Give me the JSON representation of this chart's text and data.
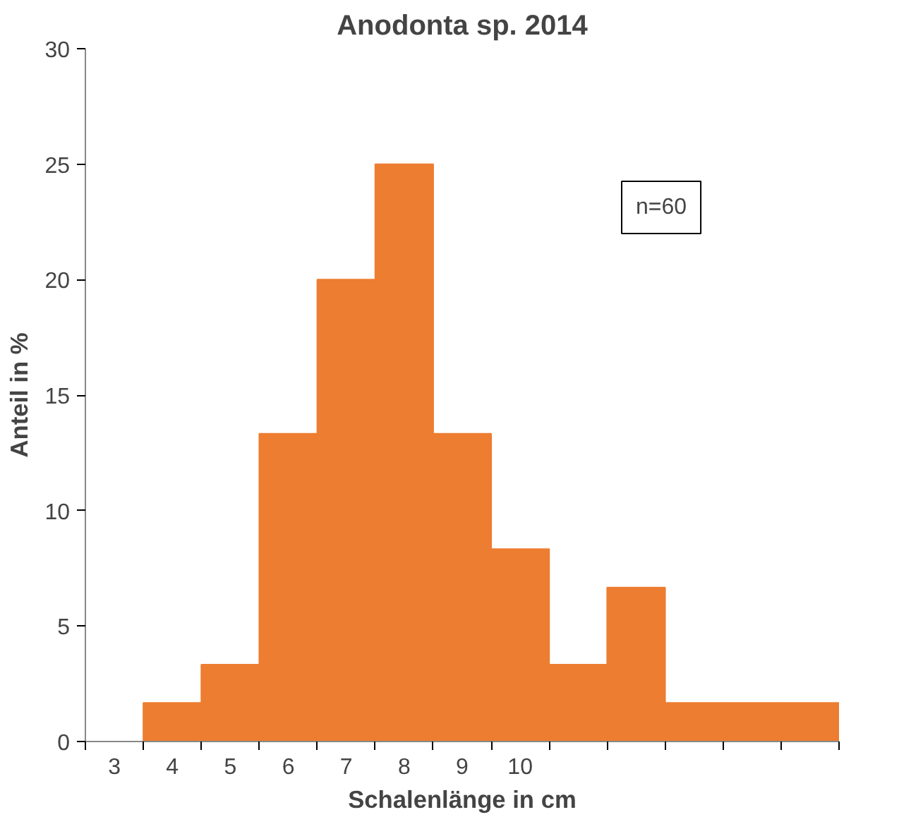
{
  "chart_data": {
    "type": "bar",
    "title": "Anodonta sp. 2014",
    "xlabel": "Schalenlänge in cm",
    "ylabel": "Anteil in %",
    "categories": [
      "3",
      "4",
      "5",
      "6",
      "7",
      "8",
      "9",
      "10",
      null,
      null,
      null,
      null,
      null
    ],
    "values": [
      0,
      1.67,
      3.33,
      13.33,
      20,
      25,
      13.33,
      8.33,
      3.33,
      6.67,
      1.67,
      1.67,
      1.67
    ],
    "color": "#ed7d31",
    "ylim": [
      0,
      30
    ],
    "yticks": [
      0,
      5,
      10,
      15,
      20,
      25,
      30
    ],
    "grid": false,
    "annotations": [
      "n=60"
    ]
  }
}
